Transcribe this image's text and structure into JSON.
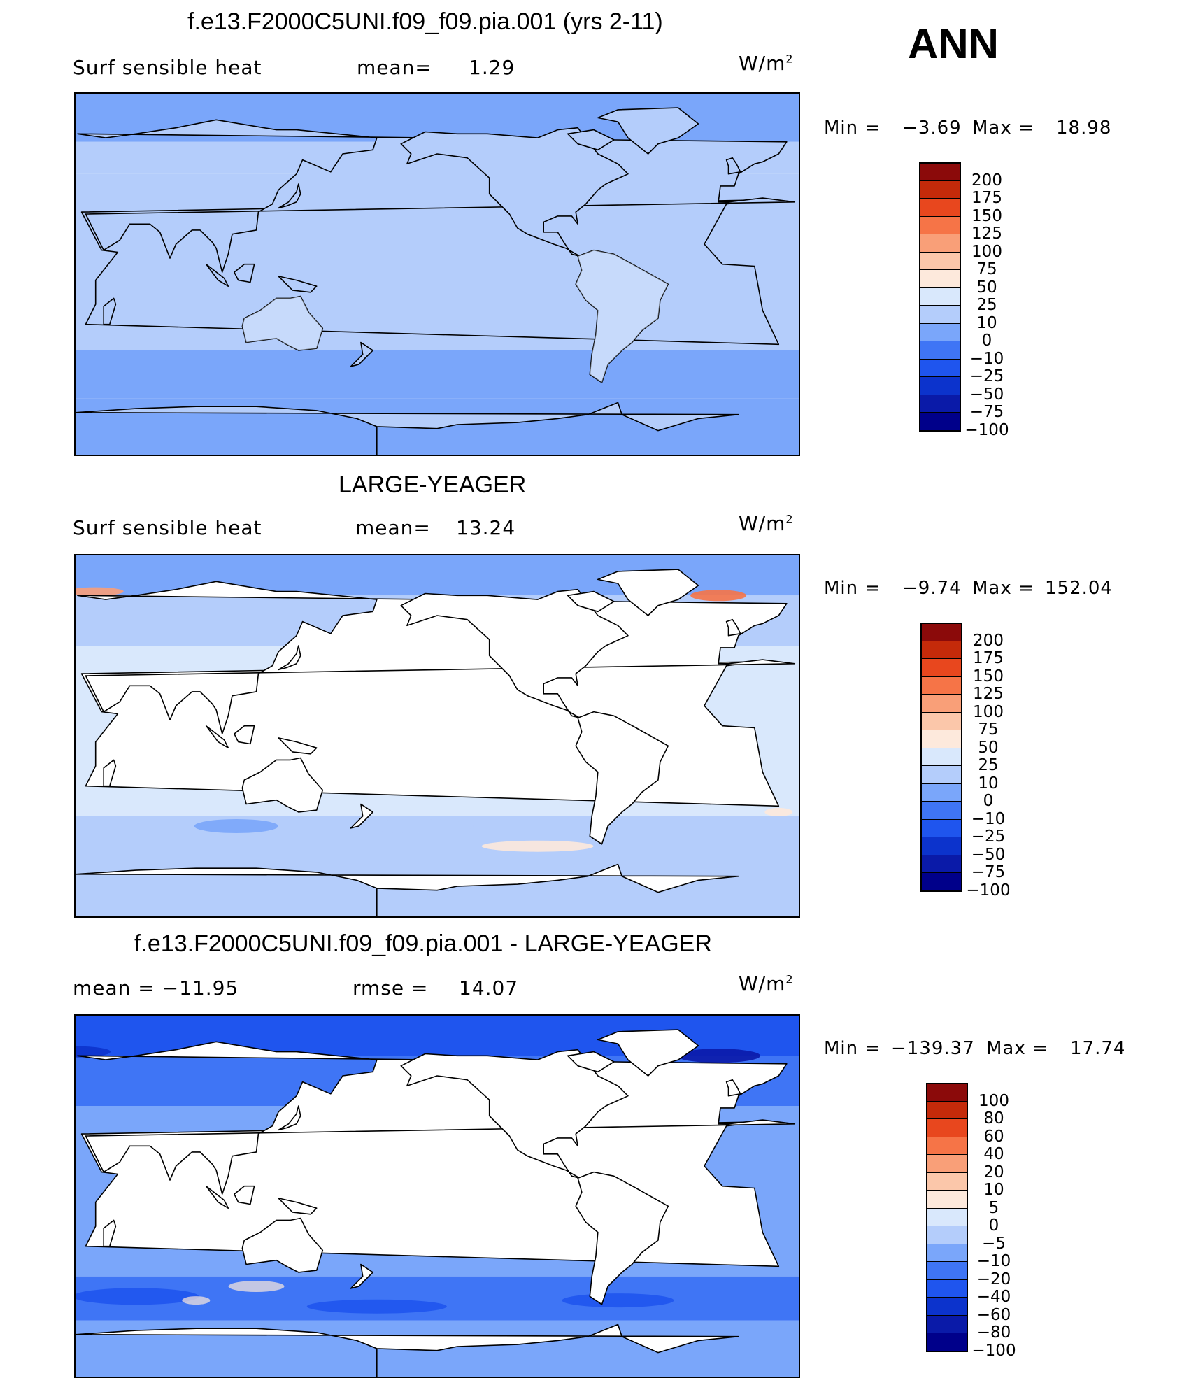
{
  "header": {
    "season": "ANN"
  },
  "panels": [
    {
      "title": "f.e13.F2000C5UNI.f09_f09.pia.001 (yrs 2-11)",
      "variable": "Surf  sensible  heat",
      "stat_label": "mean=",
      "stat_value": "1.29",
      "stat2_label": "",
      "stat2_value": "",
      "units": "W/m",
      "units_sup": "2",
      "min_label": "Min  =",
      "min_value": "−3.69",
      "max_label": "Max  =",
      "max_value": "18.98",
      "land_masked": false,
      "colorbar": [
        "200",
        "175",
        "150",
        "125",
        "100",
        "75",
        "50",
        "25",
        "10",
        "0",
        "−10",
        "−25",
        "−50",
        "−75",
        "−100"
      ]
    },
    {
      "title": "LARGE-YEAGER",
      "variable": "Surf  sensible  heat",
      "stat_label": "mean=",
      "stat_value": "13.24",
      "stat2_label": "",
      "stat2_value": "",
      "units": "W/m",
      "units_sup": "2",
      "min_label": "Min  =",
      "min_value": "−9.74",
      "max_label": "Max  =",
      "max_value": "152.04",
      "land_masked": true,
      "colorbar": [
        "200",
        "175",
        "150",
        "125",
        "100",
        "75",
        "50",
        "25",
        "10",
        "0",
        "−10",
        "−25",
        "−50",
        "−75",
        "−100"
      ]
    },
    {
      "title": "f.e13.F2000C5UNI.f09_f09.pia.001 - LARGE-YEAGER",
      "variable": "mean  =  −11.95",
      "stat_label": "rmse  =",
      "stat_value": "14.07",
      "stat2_label": "",
      "stat2_value": "",
      "units": "W/m",
      "units_sup": "2",
      "min_label": "Min  =",
      "min_value": "−139.37",
      "max_label": "Max  =",
      "max_value": "17.74",
      "land_masked": true,
      "colorbar": [
        "100",
        "80",
        "60",
        "40",
        "20",
        "10",
        "5",
        "0",
        "−5",
        "−10",
        "−20",
        "−40",
        "−60",
        "−80",
        "−100"
      ]
    }
  ],
  "chart_data": [
    {
      "type": "heatmap",
      "title": "f.e13.F2000C5UNI.f09_f09.pia.001 (yrs 2-11)",
      "variable": "Surf sensible heat",
      "units": "W/m2",
      "mean": 1.29,
      "min": -3.69,
      "max": 18.98,
      "levels": [
        -100,
        -75,
        -50,
        -25,
        -10,
        0,
        10,
        25,
        50,
        75,
        100,
        125,
        150,
        175,
        200
      ],
      "colors": [
        "#00008a",
        "#0a1aa8",
        "#0c33cc",
        "#1f55ee",
        "#3f75f5",
        "#7aa6fa",
        "#b4cdfb",
        "#d9e8fc",
        "#fde9dc",
        "#fbc7aa",
        "#f99f78",
        "#f67447",
        "#e8471e",
        "#c42a0a",
        "#8b0a0a"
      ]
    },
    {
      "type": "heatmap",
      "title": "LARGE-YEAGER",
      "variable": "Surf sensible heat",
      "units": "W/m2",
      "mean": 13.24,
      "min": -9.74,
      "max": 152.04,
      "levels": [
        -100,
        -75,
        -50,
        -25,
        -10,
        0,
        10,
        25,
        50,
        75,
        100,
        125,
        150,
        175,
        200
      ],
      "colors": [
        "#00008a",
        "#0a1aa8",
        "#0c33cc",
        "#1f55ee",
        "#3f75f5",
        "#7aa6fa",
        "#b4cdfb",
        "#d9e8fc",
        "#fde9dc",
        "#fbc7aa",
        "#f99f78",
        "#f67447",
        "#e8471e",
        "#c42a0a",
        "#8b0a0a"
      ]
    },
    {
      "type": "heatmap",
      "title": "f.e13.F2000C5UNI.f09_f09.pia.001 - LARGE-YEAGER",
      "units": "W/m2",
      "mean": -11.95,
      "rmse": 14.07,
      "min": -139.37,
      "max": 17.74,
      "levels": [
        -100,
        -80,
        -60,
        -40,
        -20,
        -10,
        -5,
        0,
        5,
        10,
        20,
        40,
        60,
        80,
        100
      ],
      "colors": [
        "#00008a",
        "#0a1aa8",
        "#0c33cc",
        "#1f55ee",
        "#3f75f5",
        "#7aa6fa",
        "#b4cdfb",
        "#d9e8fc",
        "#fde9dc",
        "#fbc7aa",
        "#f99f78",
        "#f67447",
        "#e8471e",
        "#c42a0a",
        "#8b0a0a"
      ]
    }
  ]
}
